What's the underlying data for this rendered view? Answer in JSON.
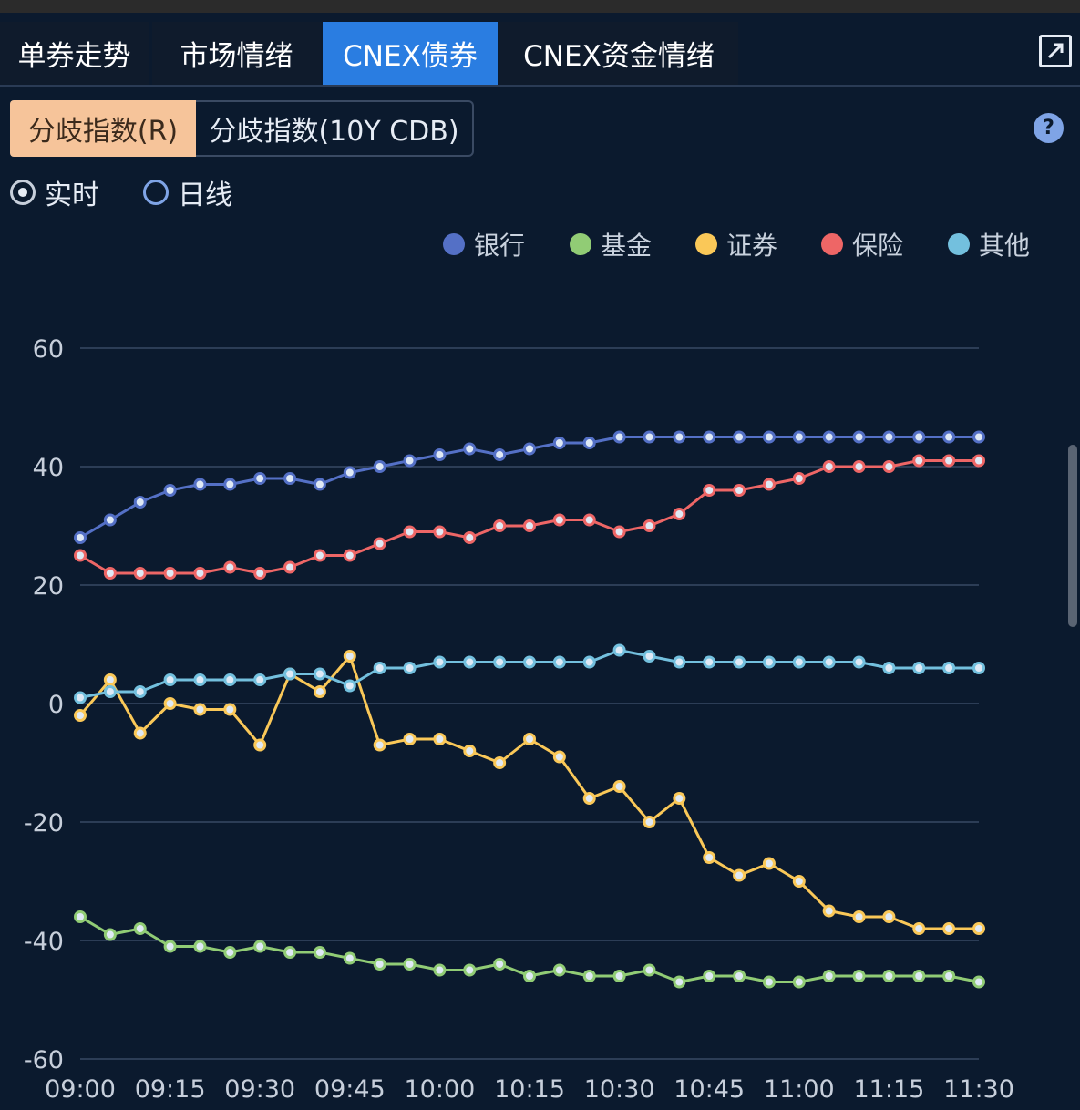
{
  "tabs": [
    {
      "label": "单券走势",
      "active": false
    },
    {
      "label": "市场情绪",
      "active": false
    },
    {
      "label": "CNEX债券",
      "active": true
    },
    {
      "label": "CNEX资金情绪",
      "active": false
    }
  ],
  "segments": [
    {
      "label": "分歧指数(R)",
      "active": true
    },
    {
      "label": "分歧指数(10Y CDB)",
      "active": false
    }
  ],
  "help_label": "?",
  "radios": [
    {
      "label": "实时",
      "checked": true
    },
    {
      "label": "日线",
      "checked": false
    }
  ],
  "colors": {
    "background": "#0b1a2e",
    "active_tab": "#2a7de1",
    "active_segment": "#f6c49a",
    "bank": "#5470c6",
    "fund": "#91cc75",
    "securities": "#fac858",
    "insurance": "#ee6666",
    "other": "#73c0de"
  },
  "chart_data": {
    "type": "line",
    "y_ticks": [
      "60",
      "40",
      "20",
      "0",
      "-20",
      "-40",
      "-60"
    ],
    "ylim": [
      -60,
      60
    ],
    "x": [
      "09:00",
      "09:05",
      "09:10",
      "09:15",
      "09:20",
      "09:25",
      "09:30",
      "09:35",
      "09:40",
      "09:45",
      "09:50",
      "09:55",
      "10:00",
      "10:05",
      "10:10",
      "10:15",
      "10:20",
      "10:25",
      "10:30",
      "10:35",
      "10:40",
      "10:45",
      "10:50",
      "10:55",
      "11:00",
      "11:05",
      "11:10",
      "11:15",
      "11:20",
      "11:25",
      "11:30"
    ],
    "x_tick_labels": [
      "09:00",
      "09:15",
      "09:30",
      "09:45",
      "10:00",
      "10:15",
      "10:30",
      "10:45",
      "11:00",
      "11:15",
      "11:30"
    ],
    "grid": true,
    "legend_position": "top-right",
    "series": [
      {
        "name": "银行",
        "color": "#5470c6",
        "values": [
          28,
          31,
          34,
          36,
          37,
          37,
          38,
          38,
          37,
          39,
          40,
          41,
          42,
          43,
          42,
          43,
          44,
          44,
          45,
          45,
          45,
          45,
          45,
          45,
          45,
          45,
          45,
          45,
          45,
          45,
          45
        ]
      },
      {
        "name": "基金",
        "color": "#91cc75",
        "values": [
          -36,
          -39,
          -38,
          -41,
          -41,
          -42,
          -41,
          -42,
          -42,
          -43,
          -44,
          -44,
          -45,
          -45,
          -44,
          -46,
          -45,
          -46,
          -46,
          -45,
          -47,
          -46,
          -46,
          -47,
          -47,
          -46,
          -46,
          -46,
          -46,
          -46,
          -47
        ]
      },
      {
        "name": "证券",
        "color": "#fac858",
        "values": [
          -2,
          4,
          -5,
          0,
          -1,
          -1,
          -7,
          5,
          2,
          8,
          -7,
          -6,
          -6,
          -8,
          -10,
          -6,
          -9,
          -16,
          -14,
          -20,
          -16,
          -26,
          -29,
          -27,
          -30,
          -35,
          -36,
          -36,
          -38,
          -38,
          -38
        ]
      },
      {
        "name": "保险",
        "color": "#ee6666",
        "values": [
          25,
          22,
          22,
          22,
          22,
          23,
          22,
          23,
          25,
          25,
          27,
          29,
          29,
          28,
          30,
          30,
          31,
          31,
          29,
          30,
          32,
          36,
          36,
          37,
          38,
          40,
          40,
          40,
          41,
          41,
          41
        ]
      },
      {
        "name": "其他",
        "color": "#73c0de",
        "values": [
          1,
          2,
          2,
          4,
          4,
          4,
          4,
          5,
          5,
          3,
          6,
          6,
          7,
          7,
          7,
          7,
          7,
          7,
          9,
          8,
          7,
          7,
          7,
          7,
          7,
          7,
          7,
          6,
          6,
          6,
          6
        ]
      }
    ]
  }
}
